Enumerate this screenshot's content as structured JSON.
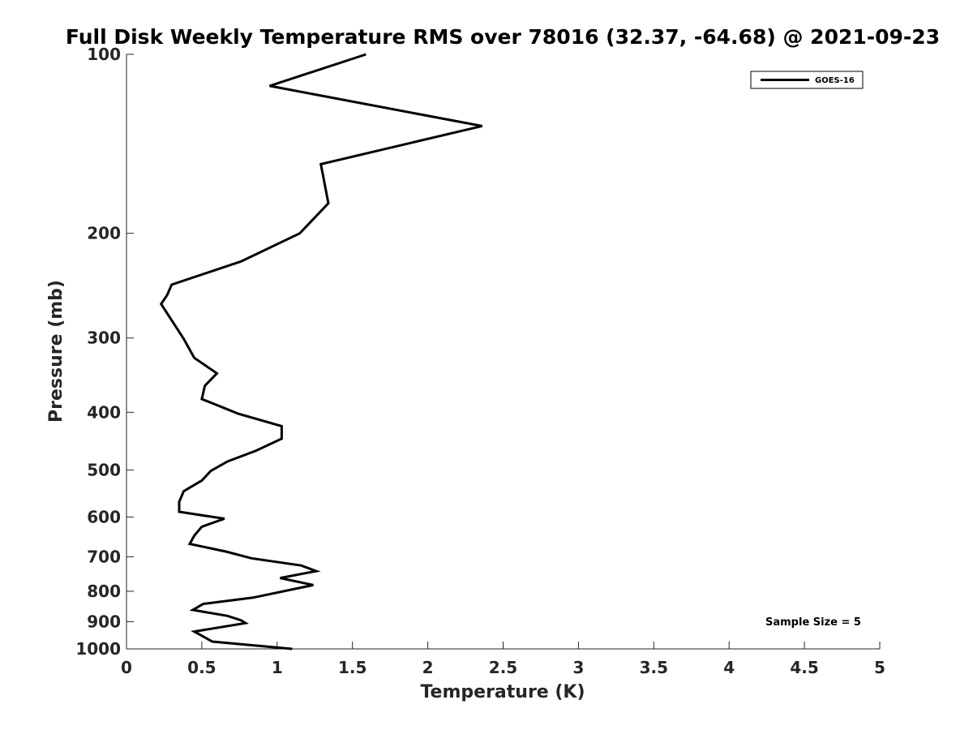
{
  "chart_data": {
    "type": "line",
    "title": "Full Disk Weekly Temperature RMS over 78016 (32.37, -64.68) @ 2021-09-23",
    "xlabel": "Temperature (K)",
    "ylabel": "Pressure (mb)",
    "xlim": [
      0,
      5
    ],
    "ylim": [
      100,
      1000
    ],
    "y_scale": "log",
    "y_reversed": true,
    "x_ticks": [
      "0",
      "0.5",
      "1",
      "1.5",
      "2",
      "2.5",
      "3",
      "3.5",
      "4",
      "4.5",
      "5"
    ],
    "y_ticks": [
      "100",
      "200",
      "300",
      "400",
      "500",
      "600",
      "700",
      "800",
      "900",
      "1000"
    ],
    "grid": false,
    "legend_position": "top-right",
    "annotation": "Sample Size = 5",
    "series": [
      {
        "name": "GOES-16",
        "color": "#000000",
        "x": [
          1.59,
          0.95,
          2.36,
          1.29,
          1.34,
          1.15,
          0.76,
          0.3,
          0.27,
          0.23,
          0.38,
          0.45,
          0.6,
          0.52,
          0.5,
          0.74,
          1.03,
          1.03,
          0.86,
          0.67,
          0.56,
          0.5,
          0.38,
          0.35,
          0.35,
          0.65,
          0.5,
          0.45,
          0.42,
          0.66,
          0.83,
          1.16,
          1.26,
          1.02,
          1.24,
          0.84,
          0.51,
          0.44,
          0.67,
          0.76,
          0.79,
          0.45,
          0.57,
          1.1
        ],
        "y": [
          100,
          113,
          132,
          153,
          178,
          200,
          223,
          244,
          254,
          263,
          301,
          324,
          344,
          361,
          380,
          402,
          422,
          443,
          464,
          484,
          502,
          521,
          543,
          566,
          588,
          604,
          623,
          645,
          666,
          686,
          704,
          724,
          740,
          760,
          781,
          820,
          840,
          860,
          880,
          895,
          905,
          935,
          972,
          1000
        ]
      }
    ]
  }
}
